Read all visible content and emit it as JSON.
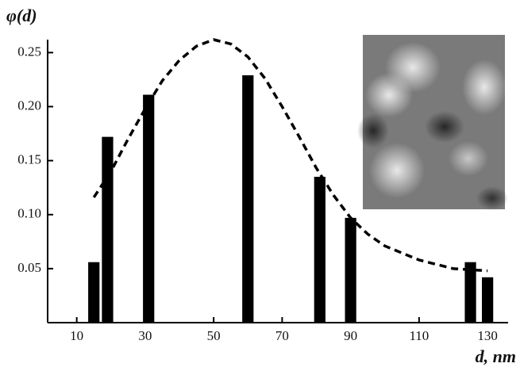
{
  "chart_data": {
    "type": "bar",
    "y_label": "φ(d)",
    "x_label": "d, nm",
    "x": [
      15,
      19,
      31,
      60,
      81,
      90,
      125,
      130
    ],
    "values": [
      0.056,
      0.172,
      0.211,
      0.229,
      0.135,
      0.097,
      0.056,
      0.042
    ],
    "bar_width": 3.3,
    "color": "#000000",
    "curve": {
      "x": [
        15,
        20,
        25,
        30,
        35,
        40,
        45,
        50,
        55,
        60,
        65,
        70,
        75,
        80,
        85,
        90,
        95,
        100,
        110,
        120,
        130
      ],
      "values": [
        0.116,
        0.14,
        0.17,
        0.198,
        0.224,
        0.243,
        0.256,
        0.262,
        0.258,
        0.246,
        0.226,
        0.2,
        0.172,
        0.143,
        0.118,
        0.097,
        0.082,
        0.071,
        0.058,
        0.05,
        0.048
      ],
      "color": "#000000",
      "dashed": true
    },
    "xlim": [
      1.5,
      136
    ],
    "ylim": [
      0,
      0.262
    ],
    "xticks": [
      10,
      30,
      50,
      70,
      90,
      110,
      130
    ],
    "yticks": [
      0.05,
      {
        "value": 0.1,
        "label": "0.10"
      },
      0.15,
      {
        "value": 0.2,
        "label": "0.20"
      },
      0.25
    ]
  }
}
